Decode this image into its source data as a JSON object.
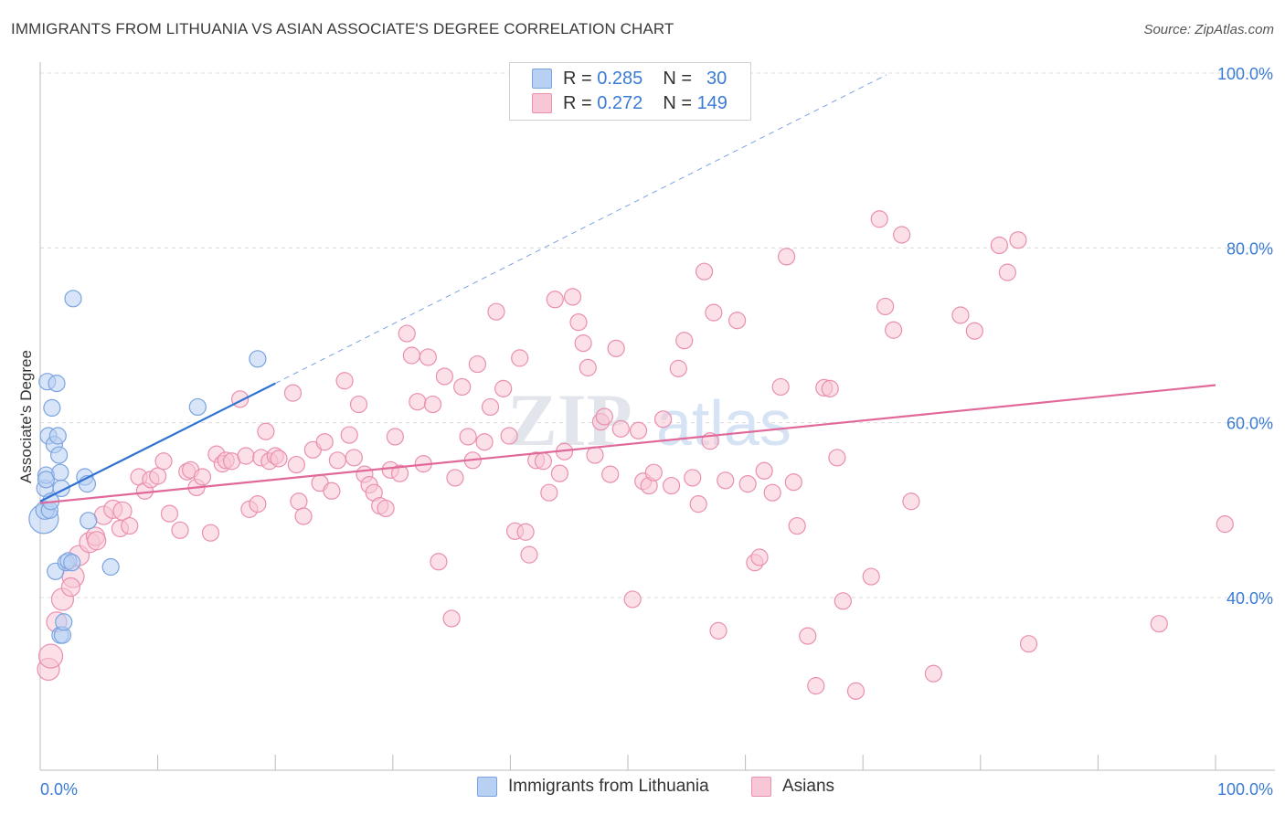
{
  "header": {
    "title": "IMMIGRANTS FROM LITHUANIA VS ASIAN ASSOCIATE'S DEGREE CORRELATION CHART",
    "source": "Source: ZipAtlas.com"
  },
  "legend": {
    "r_label": "R =",
    "n_label": "N =",
    "series": [
      {
        "r": "0.285",
        "n": "30"
      },
      {
        "r": "0.272",
        "n": "149"
      }
    ]
  },
  "watermark": {
    "zip": "ZIP",
    "atlas": "atlas"
  },
  "colors": {
    "blue_fill": "#b8d0f2",
    "blue_stroke": "#7aa3e0",
    "blue_line": "#2f72d6",
    "pink_fill": "#f7c7d6",
    "pink_stroke": "#ea8fae",
    "pink_line": "#e0699a",
    "axis_text": "#3a7bd5"
  },
  "chart_data": {
    "type": "scatter",
    "title": "IMMIGRANTS FROM LITHUANIA VS ASIAN ASSOCIATE'S DEGREE CORRELATION CHART",
    "xlabel": "",
    "ylabel": "Associate's Degree",
    "xlim": [
      0,
      100
    ],
    "ylim": [
      20,
      102
    ],
    "x_tick_labels": [
      "0.0%",
      "100.0%"
    ],
    "y_ticks": [
      40,
      60,
      80,
      100
    ],
    "y_tick_labels": [
      "40.0%",
      "60.0%",
      "80.0%",
      "100.0%"
    ],
    "grid": true,
    "legend_position": "bottom",
    "series": [
      {
        "name": "Immigrants from Lithuania",
        "r": 0.285,
        "n": 30,
        "trend": {
          "x0": 0,
          "y0": 51,
          "x1": 20,
          "y1": 64.5,
          "dash_to_x": 72,
          "dash_to_y": 99.8
        },
        "points": [
          [
            0.3,
            49,
            16
          ],
          [
            0.4,
            50,
            10
          ],
          [
            0.4,
            52.5,
            9
          ],
          [
            0.5,
            54,
            9
          ],
          [
            0.5,
            53.5,
            9
          ],
          [
            0.6,
            64.7,
            9
          ],
          [
            0.7,
            58.5,
            9
          ],
          [
            0.8,
            50,
            9
          ],
          [
            0.9,
            51,
            9
          ],
          [
            1.0,
            61.7,
            9
          ],
          [
            1.2,
            57.5,
            9
          ],
          [
            1.3,
            43,
            9
          ],
          [
            1.4,
            64.5,
            9
          ],
          [
            1.5,
            58.5,
            9
          ],
          [
            1.6,
            56.3,
            9
          ],
          [
            1.7,
            54.3,
            9
          ],
          [
            1.8,
            52.5,
            9
          ],
          [
            1.7,
            35.7,
            9
          ],
          [
            1.9,
            35.7,
            9
          ],
          [
            2.0,
            37.2,
            9
          ],
          [
            2.2,
            44,
            9
          ],
          [
            2.4,
            44.2,
            9
          ],
          [
            2.7,
            44,
            9
          ],
          [
            2.8,
            74.2,
            9
          ],
          [
            3.8,
            53.8,
            9
          ],
          [
            4.0,
            53,
            9
          ],
          [
            4.1,
            48.8,
            9
          ],
          [
            6.0,
            43.5,
            9
          ],
          [
            13.4,
            61.8,
            9
          ],
          [
            18.5,
            67.3,
            9
          ]
        ]
      },
      {
        "name": "Asians",
        "r": 0.272,
        "n": 149,
        "trend": {
          "x0": 0,
          "y0": 50.8,
          "x1": 100,
          "y1": 64.3
        },
        "points": [
          [
            0.7,
            31.8,
            12
          ],
          [
            0.9,
            33.3,
            13
          ],
          [
            1.4,
            37.2,
            11
          ],
          [
            1.9,
            39.8,
            12
          ],
          [
            2.8,
            42.4,
            12
          ],
          [
            2.6,
            41.2,
            10
          ],
          [
            3.3,
            44.8,
            11
          ],
          [
            4.2,
            46.3,
            11
          ],
          [
            4.7,
            47,
            10
          ],
          [
            4.8,
            46.5,
            10
          ],
          [
            5.4,
            49.4,
            10
          ],
          [
            6.2,
            50.1,
            10
          ],
          [
            7.0,
            49.9,
            10
          ],
          [
            6.8,
            47.9,
            9
          ],
          [
            7.6,
            48.2,
            9
          ],
          [
            8.4,
            53.8,
            9
          ],
          [
            8.9,
            52.2,
            9
          ],
          [
            9.4,
            53.5,
            9
          ],
          [
            10.0,
            53.9,
            9
          ],
          [
            10.5,
            55.6,
            9
          ],
          [
            11.0,
            49.6,
            9
          ],
          [
            11.9,
            47.7,
            9
          ],
          [
            12.5,
            54.4,
            9
          ],
          [
            12.8,
            54.6,
            9
          ],
          [
            13.3,
            52.6,
            9
          ],
          [
            13.8,
            53.8,
            9
          ],
          [
            14.5,
            47.4,
            9
          ],
          [
            15.0,
            56.4,
            9
          ],
          [
            15.5,
            55.3,
            9
          ],
          [
            15.8,
            55.7,
            9
          ],
          [
            16.3,
            55.6,
            9
          ],
          [
            17.0,
            62.7,
            9
          ],
          [
            17.5,
            56.2,
            9
          ],
          [
            17.8,
            50.1,
            9
          ],
          [
            18.5,
            50.7,
            9
          ],
          [
            18.8,
            56,
            9
          ],
          [
            19.2,
            59,
            9
          ],
          [
            19.5,
            55.6,
            9
          ],
          [
            20.0,
            56.2,
            9
          ],
          [
            20.3,
            55.9,
            9
          ],
          [
            21.5,
            63.4,
            9
          ],
          [
            21.8,
            55.2,
            9
          ],
          [
            22.0,
            51,
            9
          ],
          [
            22.4,
            49.3,
            9
          ],
          [
            23.2,
            56.9,
            9
          ],
          [
            23.8,
            53.1,
            9
          ],
          [
            24.2,
            57.8,
            9
          ],
          [
            24.8,
            52.2,
            9
          ],
          [
            25.3,
            55.7,
            9
          ],
          [
            25.9,
            64.8,
            9
          ],
          [
            26.3,
            58.6,
            9
          ],
          [
            26.7,
            56,
            9
          ],
          [
            27.1,
            62.1,
            9
          ],
          [
            27.6,
            54.1,
            9
          ],
          [
            28.0,
            52.9,
            9
          ],
          [
            28.4,
            52,
            9
          ],
          [
            28.9,
            50.5,
            9
          ],
          [
            29.4,
            50.2,
            9
          ],
          [
            29.8,
            54.6,
            9
          ],
          [
            30.2,
            58.4,
            9
          ],
          [
            30.6,
            54.2,
            9
          ],
          [
            31.2,
            70.2,
            9
          ],
          [
            31.6,
            67.7,
            9
          ],
          [
            32.1,
            62.4,
            9
          ],
          [
            32.6,
            55.3,
            9
          ],
          [
            33.0,
            67.5,
            9
          ],
          [
            33.4,
            62.1,
            9
          ],
          [
            33.9,
            44.1,
            9
          ],
          [
            34.4,
            65.3,
            9
          ],
          [
            35.0,
            37.6,
            9
          ],
          [
            35.3,
            53.7,
            9
          ],
          [
            35.9,
            64.1,
            9
          ],
          [
            36.4,
            58.4,
            9
          ],
          [
            36.8,
            55.7,
            9
          ],
          [
            37.2,
            66.7,
            9
          ],
          [
            37.8,
            57.8,
            9
          ],
          [
            38.3,
            61.8,
            9
          ],
          [
            38.8,
            72.7,
            9
          ],
          [
            39.4,
            63.9,
            9
          ],
          [
            39.9,
            58.5,
            9
          ],
          [
            40.4,
            47.6,
            9
          ],
          [
            40.8,
            67.4,
            9
          ],
          [
            41.3,
            47.5,
            9
          ],
          [
            41.6,
            44.9,
            9
          ],
          [
            42.2,
            55.7,
            9
          ],
          [
            42.8,
            55.6,
            9
          ],
          [
            43.3,
            52,
            9
          ],
          [
            43.8,
            74.1,
            9
          ],
          [
            44.2,
            54.2,
            9
          ],
          [
            44.6,
            56.7,
            9
          ],
          [
            45.3,
            74.4,
            9
          ],
          [
            45.8,
            71.5,
            9
          ],
          [
            46.2,
            69.1,
            9
          ],
          [
            46.6,
            66.3,
            9
          ],
          [
            47.2,
            56.3,
            9
          ],
          [
            47.7,
            60.1,
            9
          ],
          [
            48.0,
            60.7,
            9
          ],
          [
            48.5,
            54.1,
            9
          ],
          [
            49.0,
            68.5,
            9
          ],
          [
            49.4,
            59.3,
            9
          ],
          [
            50.4,
            39.8,
            9
          ],
          [
            50.9,
            59.1,
            9
          ],
          [
            51.3,
            53.3,
            9
          ],
          [
            51.8,
            52.8,
            9
          ],
          [
            52.2,
            54.3,
            9
          ],
          [
            53.0,
            60.4,
            9
          ],
          [
            53.7,
            52.8,
            9
          ],
          [
            54.3,
            66.2,
            9
          ],
          [
            54.8,
            69.4,
            9
          ],
          [
            55.5,
            53.7,
            9
          ],
          [
            56.0,
            50.7,
            9
          ],
          [
            56.5,
            77.3,
            9
          ],
          [
            57.0,
            57.9,
            9
          ],
          [
            57.3,
            72.6,
            9
          ],
          [
            57.7,
            36.2,
            9
          ],
          [
            58.3,
            53.4,
            9
          ],
          [
            59.3,
            71.7,
            9
          ],
          [
            60.2,
            53,
            9
          ],
          [
            60.8,
            44,
            9
          ],
          [
            61.2,
            44.6,
            9
          ],
          [
            61.6,
            54.5,
            9
          ],
          [
            62.3,
            52,
            9
          ],
          [
            63.0,
            64.1,
            9
          ],
          [
            63.5,
            79,
            9
          ],
          [
            64.1,
            53.2,
            9
          ],
          [
            64.4,
            48.2,
            9
          ],
          [
            65.3,
            35.6,
            9
          ],
          [
            66.0,
            29.9,
            9
          ],
          [
            66.7,
            64,
            9
          ],
          [
            67.2,
            63.9,
            9
          ],
          [
            67.8,
            56,
            9
          ],
          [
            68.3,
            39.6,
            9
          ],
          [
            69.4,
            29.3,
            9
          ],
          [
            70.7,
            42.4,
            9
          ],
          [
            71.4,
            83.3,
            9
          ],
          [
            71.9,
            73.3,
            9
          ],
          [
            72.6,
            70.6,
            9
          ],
          [
            73.3,
            81.5,
            9
          ],
          [
            74.1,
            51,
            9
          ],
          [
            76.0,
            31.3,
            9
          ],
          [
            78.3,
            72.3,
            9
          ],
          [
            79.5,
            70.5,
            9
          ],
          [
            81.6,
            80.3,
            9
          ],
          [
            82.3,
            77.2,
            9
          ],
          [
            83.2,
            80.9,
            9
          ],
          [
            84.1,
            34.7,
            9
          ],
          [
            95.2,
            37,
            9
          ],
          [
            100.8,
            48.4,
            9
          ]
        ]
      }
    ]
  }
}
